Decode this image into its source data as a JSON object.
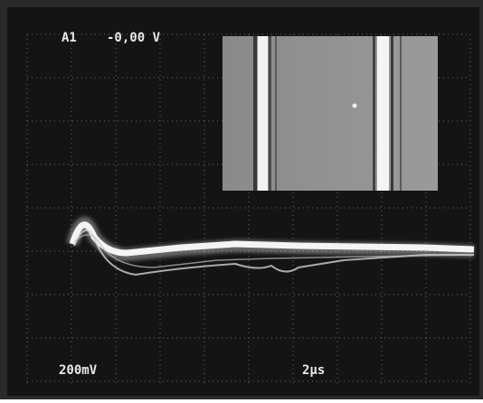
{
  "screen": {
    "channel": "A1",
    "offset": "-0,00 V",
    "volts_per_div": "200mV",
    "time_per_div": "2µs"
  }
}
